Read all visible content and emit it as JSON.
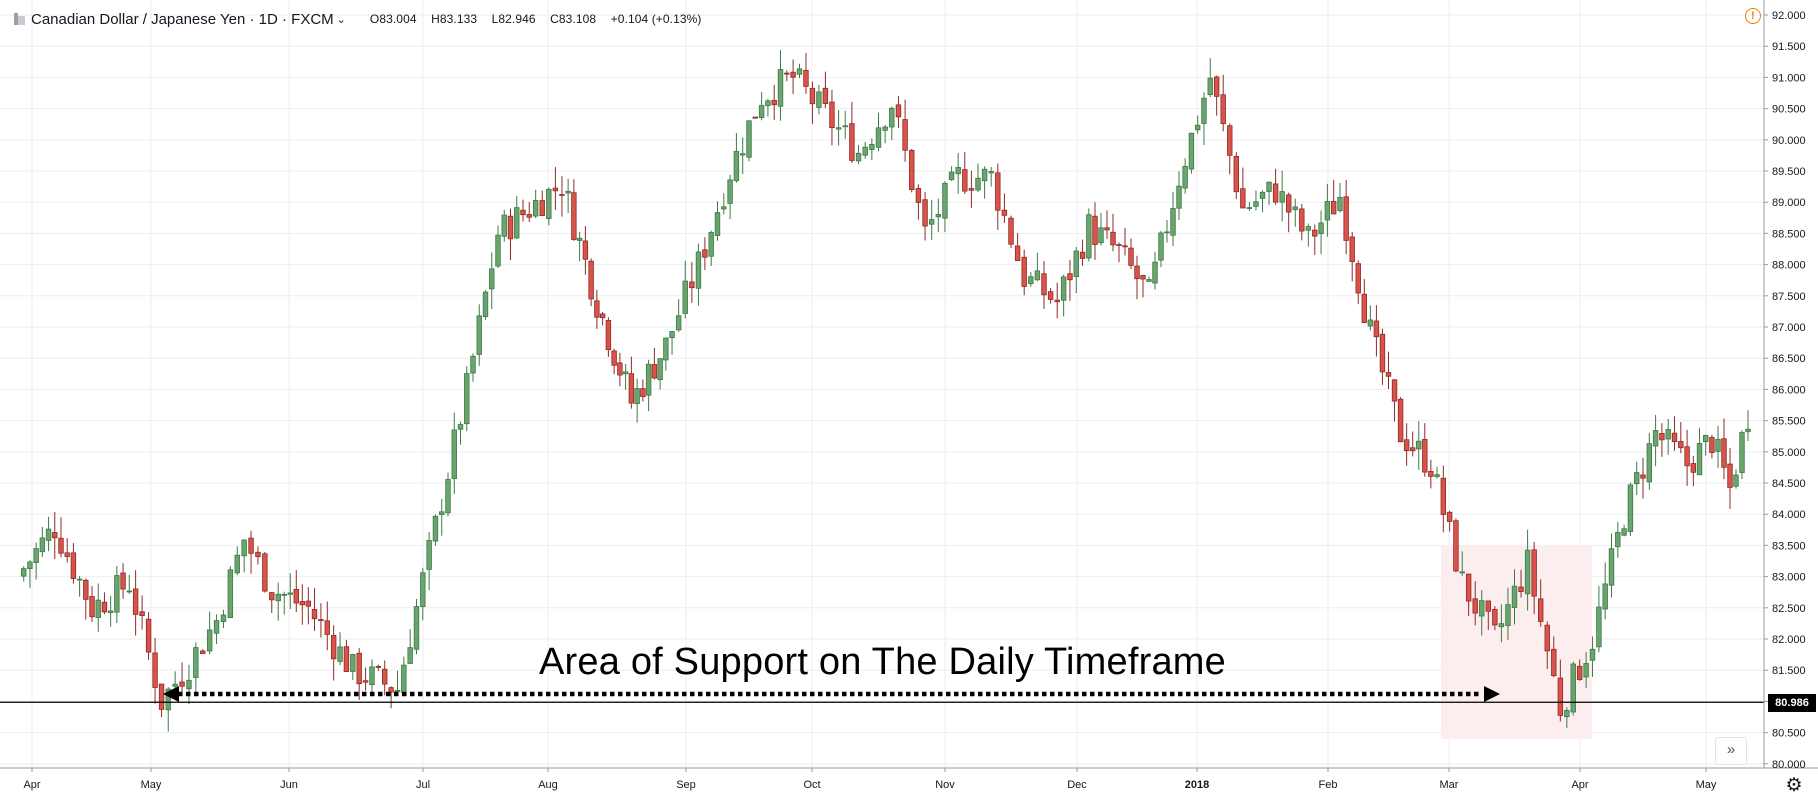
{
  "header": {
    "title": "Canadian Dollar / Japanese Yen · 1D · FXCM",
    "open": "O83.004",
    "high": "H83.133",
    "low": "L82.946",
    "close": "C83.108",
    "change": "+0.104 (+0.13%)"
  },
  "annotation": {
    "text": "Area of Support on The Daily Timeframe"
  },
  "last_price_label": "80.986",
  "icons": {
    "alert": "alert-icon",
    "scroll": "double-chevron-right-icon",
    "settings": "gear-icon"
  },
  "colors": {
    "up_fill": "#6aa56f",
    "up_stroke": "#3d7a45",
    "down_fill": "#d9534a",
    "down_stroke": "#8e2b25",
    "grid": "#eceef2",
    "support_zone": "#fceeee"
  },
  "chart_data": {
    "type": "candlestick",
    "symbol": "CADJPY",
    "timeframe": "1D",
    "y_axis": {
      "ticks": [
        "92.000",
        "91.500",
        "91.000",
        "90.500",
        "90.000",
        "89.500",
        "89.000",
        "88.500",
        "88.000",
        "87.500",
        "87.000",
        "86.500",
        "86.000",
        "85.500",
        "85.000",
        "84.500",
        "84.000",
        "83.500",
        "83.000",
        "82.500",
        "82.000",
        "81.500",
        "81.000",
        "80.500",
        "80.000"
      ],
      "range": [
        80.0,
        92.0
      ]
    },
    "x_axis": {
      "labels": [
        "Apr",
        "May",
        "Jun",
        "Jul",
        "Aug",
        "Sep",
        "Oct",
        "Nov",
        "Dec",
        "2018",
        "Feb",
        "Mar",
        "Apr",
        "May"
      ]
    },
    "support_level": 80.986,
    "support_zone": {
      "from": "Mar",
      "to": "Apr",
      "low": 80.4,
      "high": 83.5
    },
    "grid": true,
    "legend": "none",
    "price_path": [
      [
        "Apr",
        83.0
      ],
      [
        "Apr",
        83.8
      ],
      [
        "Apr",
        82.5
      ],
      [
        "Apr",
        82.9
      ],
      [
        "May",
        81.0
      ],
      [
        "May",
        81.6
      ],
      [
        "May",
        82.3
      ],
      [
        "May",
        83.6
      ],
      [
        "May",
        82.8
      ],
      [
        "Jun",
        82.5
      ],
      [
        "Jun",
        81.5
      ],
      [
        "Jun",
        81.2
      ],
      [
        "Jul",
        83.8
      ],
      [
        "Jul",
        86.0
      ],
      [
        "Jul",
        88.5
      ],
      [
        "Jul",
        88.9
      ],
      [
        "Aug",
        89.3
      ],
      [
        "Aug",
        87.4
      ],
      [
        "Aug",
        85.8
      ],
      [
        "Aug",
        86.7
      ],
      [
        "Sep",
        88.0
      ],
      [
        "Sep",
        89.5
      ],
      [
        "Sep",
        90.7
      ],
      [
        "Sep",
        91.0
      ],
      [
        "Oct",
        90.4
      ],
      [
        "Oct",
        89.8
      ],
      [
        "Oct",
        90.6
      ],
      [
        "Oct",
        88.5
      ],
      [
        "Nov",
        89.4
      ],
      [
        "Nov",
        89.4
      ],
      [
        "Nov",
        87.8
      ],
      [
        "Nov",
        87.4
      ],
      [
        "Dec",
        88.6
      ],
      [
        "Dec",
        88.2
      ],
      [
        "Dec",
        87.5
      ],
      [
        "Dec",
        89.4
      ],
      [
        "2018",
        91.0
      ],
      [
        "2018",
        88.9
      ],
      [
        "2018",
        89.2
      ],
      [
        "2018",
        88.4
      ],
      [
        "Feb",
        89.1
      ],
      [
        "Feb",
        86.9
      ],
      [
        "Feb",
        85.3
      ],
      [
        "Feb",
        84.8
      ],
      [
        "Mar",
        82.9
      ],
      [
        "Mar",
        82.0
      ],
      [
        "Mar",
        83.2
      ],
      [
        "Mar",
        80.9
      ],
      [
        "Apr",
        82.0
      ],
      [
        "Apr",
        84.0
      ],
      [
        "Apr",
        85.3
      ],
      [
        "Apr",
        84.8
      ],
      [
        "May",
        85.2
      ],
      [
        "May",
        84.4
      ],
      [
        "May",
        85.6
      ]
    ]
  }
}
